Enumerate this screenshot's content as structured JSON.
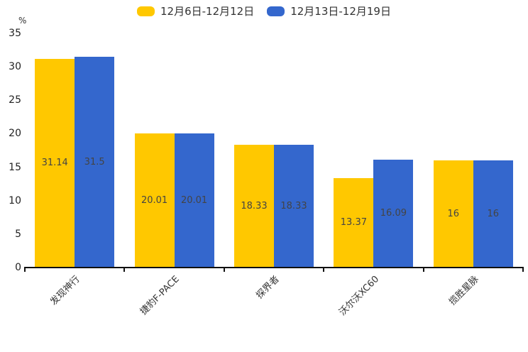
{
  "chart_data": {
    "type": "bar",
    "title": "",
    "ylabel": "%",
    "xlabel": "",
    "categories": [
      "发现神行",
      "捷豹F-PACE",
      "探界者",
      "沃尔沃XC60",
      "揽胜星脉"
    ],
    "series": [
      {
        "name": "12月6日-12月12日",
        "color": "#FFC800",
        "values": [
          31.14,
          20.01,
          18.33,
          13.37,
          16
        ]
      },
      {
        "name": "12月13日-12月19日",
        "color": "#3467CD",
        "values": [
          31.5,
          20.01,
          18.33,
          16.09,
          16
        ]
      }
    ],
    "ylim": [
      0,
      35
    ],
    "yticks": [
      0,
      5,
      10,
      15,
      20,
      25,
      30,
      35
    ],
    "grid": false,
    "legend_position": "top",
    "value_label_position": "middle-of-bar"
  }
}
